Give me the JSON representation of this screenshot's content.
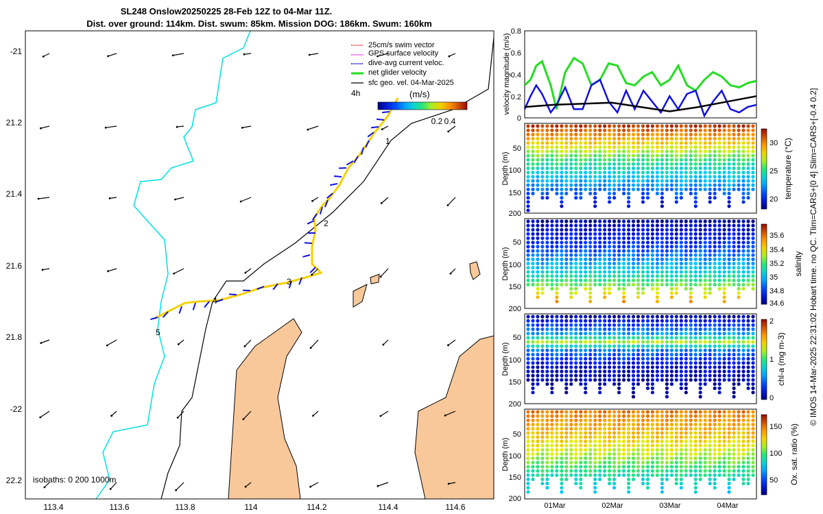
{
  "header": {
    "title_line1": "SL248 Onslow20250225 28-Feb 12Z to 04-Mar 11Z.",
    "title_line2": "Dist. over ground: 114km. Dist. swum: 85km. Mission DOG: 186km. Swum: 160km"
  },
  "colors": {
    "land": "#f9c89a",
    "coast_line": "#00e0e0",
    "track": "#f4d000",
    "net_velocity": "#22dd22",
    "dive_avg": "#1010e0",
    "gps": "#ff00ff",
    "swim": "#ff2020",
    "geo": "#000000"
  },
  "map": {
    "lon_ticks": [
      "113.4",
      "113.6",
      "113.8",
      "114",
      "114.2",
      "114.4",
      "114.6"
    ],
    "lat_ticks": [
      "-21",
      "21.2",
      "21.4",
      "21.6",
      "21.8",
      "-22",
      "22.2"
    ],
    "legend": {
      "items": [
        "25cm/s swim vector",
        "GPS surface velocity",
        "dive-avg current veloc.",
        "net glider velocity",
        "sfc geo. vel. 04-Mar-2025"
      ],
      "time_label": "4h",
      "colorbar_unit": "(m/s)",
      "colorbar_ticks": [
        "0.2",
        "0.4"
      ]
    },
    "waypoints": [
      "1",
      "2",
      "3",
      "4",
      "5"
    ],
    "isobath_label": "isobaths: 0   200  1000m"
  },
  "right_panels": {
    "velocity": {
      "ylabel": "velocity magnitude (m/s)",
      "ticks": [
        "0.8",
        "0.6",
        "0.4",
        "0.2",
        "0"
      ]
    },
    "temperature": {
      "ylabel": "Depth (m)",
      "cbar_label": "temperature (°C)",
      "depth_ticks": [
        "50",
        "100",
        "150",
        "200"
      ],
      "cbar_ticks": [
        "30",
        "25",
        "20"
      ]
    },
    "salinity": {
      "ylabel": "Depth (m)",
      "cbar_label": "salinity",
      "depth_ticks": [
        "50",
        "100",
        "150",
        "200"
      ],
      "cbar_ticks": [
        "35.6",
        "35.4",
        "35.2",
        "35",
        "34.8",
        "34.6"
      ]
    },
    "chla": {
      "ylabel": "Depth (m)",
      "cbar_label": "chl-a (mg m-3)",
      "depth_ticks": [
        "50",
        "100",
        "150",
        "200"
      ],
      "cbar_ticks": [
        "2",
        "1",
        "0"
      ]
    },
    "oxygen": {
      "ylabel": "Depth (m)",
      "cbar_label": "Ox. sat. ratio (%)",
      "depth_ticks": [
        "50",
        "100",
        "150",
        "200"
      ],
      "cbar_ticks": [
        "150",
        "100",
        "50"
      ]
    },
    "date_ticks": [
      "01Mar",
      "02Mar",
      "03Mar",
      "04Mar"
    ]
  },
  "side_text": "© IMOS 14-Mar-2025 22:31:02 Hobart time. no QC. Tlim=CARS+[0 4] Slim=CARS+[-0.4 0.2]",
  "chart_data": [
    {
      "type": "line",
      "title": "velocity magnitude",
      "ylabel": "velocity magnitude (m/s)",
      "ylim": [
        0,
        0.8
      ],
      "x_unit": "days since 28-Feb 12Z",
      "xlim": [
        0,
        4
      ],
      "series": [
        {
          "name": "net glider velocity",
          "color": "#22dd22",
          "x": [
            0,
            0.1,
            0.2,
            0.3,
            0.45,
            0.55,
            0.7,
            0.85,
            1.0,
            1.15,
            1.3,
            1.45,
            1.6,
            1.75,
            1.9,
            2.05,
            2.2,
            2.35,
            2.5,
            2.65,
            2.8,
            2.95,
            3.1,
            3.25,
            3.4,
            3.55,
            3.7,
            3.85,
            4.0
          ],
          "values": [
            0.3,
            0.35,
            0.48,
            0.52,
            0.3,
            0.08,
            0.42,
            0.55,
            0.5,
            0.3,
            0.35,
            0.5,
            0.48,
            0.32,
            0.3,
            0.38,
            0.42,
            0.3,
            0.35,
            0.48,
            0.3,
            0.25,
            0.35,
            0.42,
            0.38,
            0.3,
            0.28,
            0.32,
            0.34
          ]
        },
        {
          "name": "dive-avg current veloc.",
          "color": "#1010e0",
          "x": [
            0,
            0.1,
            0.2,
            0.3,
            0.45,
            0.55,
            0.7,
            0.85,
            1.0,
            1.15,
            1.3,
            1.45,
            1.6,
            1.75,
            1.9,
            2.05,
            2.2,
            2.35,
            2.5,
            2.65,
            2.8,
            2.95,
            3.1,
            3.25,
            3.4,
            3.55,
            3.7,
            3.85,
            4.0
          ],
          "values": [
            0.08,
            0.2,
            0.3,
            0.22,
            0.05,
            0.12,
            0.28,
            0.08,
            0.08,
            0.3,
            0.35,
            0.15,
            0.05,
            0.25,
            0.08,
            0.25,
            0.15,
            0.05,
            0.2,
            0.08,
            0.22,
            0.25,
            0.02,
            0.15,
            0.25,
            0.08,
            0.05,
            0.1,
            0.12
          ]
        },
        {
          "name": "sfc geo. vel. 04-Mar-2025",
          "color": "#000000",
          "x": [
            0,
            0.5,
            1.0,
            1.5,
            2.0,
            2.5,
            3.0,
            3.5,
            4.0
          ],
          "values": [
            0.1,
            0.12,
            0.13,
            0.14,
            0.1,
            0.06,
            0.1,
            0.15,
            0.2
          ]
        }
      ]
    },
    {
      "type": "heatmap",
      "title": "temperature",
      "ylabel": "Depth (m)",
      "cbar_label": "temperature (°C)",
      "ylim": [
        0,
        200
      ],
      "clim": [
        18,
        32
      ],
      "profile": {
        "depth": [
          0,
          40,
          80,
          120,
          160,
          200
        ],
        "values": [
          31,
          28,
          25,
          23,
          21,
          18.5
        ]
      }
    },
    {
      "type": "heatmap",
      "title": "salinity",
      "ylabel": "Depth (m)",
      "cbar_label": "salinity",
      "ylim": [
        0,
        200
      ],
      "clim": [
        34.55,
        35.7
      ],
      "profile": {
        "depth": [
          0,
          60,
          120,
          170,
          200
        ],
        "values": [
          34.6,
          34.75,
          35.0,
          35.3,
          35.55
        ]
      }
    },
    {
      "type": "heatmap",
      "title": "chl-a",
      "ylabel": "Depth (m)",
      "cbar_label": "chl-a (mg m-3)",
      "ylim": [
        0,
        200
      ],
      "clim": [
        0,
        2
      ],
      "profile": {
        "depth": [
          0,
          40,
          60,
          80,
          120,
          200
        ],
        "values": [
          0.1,
          0.6,
          1.2,
          0.5,
          0.15,
          0.05
        ]
      }
    },
    {
      "type": "heatmap",
      "title": "Ox. sat. ratio",
      "ylabel": "Depth (m)",
      "cbar_label": "Ox. sat. ratio (%)",
      "ylim": [
        0,
        200
      ],
      "clim": [
        20,
        175
      ],
      "profile": {
        "depth": [
          0,
          50,
          100,
          150,
          200
        ],
        "values": [
          150,
          135,
          115,
          90,
          75
        ]
      }
    }
  ]
}
